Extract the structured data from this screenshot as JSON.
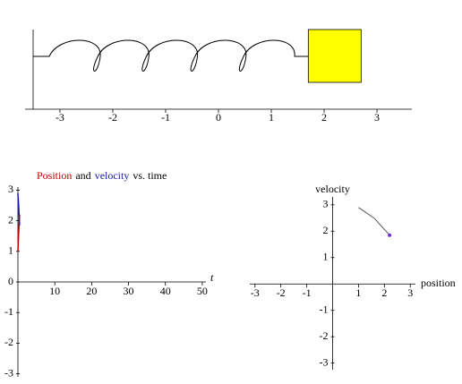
{
  "chart_data": [
    {
      "type": "spring",
      "position": 2.2,
      "color": "#ffff00",
      "xlim": [
        -3.66,
        3.66
      ],
      "xticks": [
        -3,
        -2,
        -1,
        0,
        1,
        2,
        3
      ]
    },
    {
      "type": "line",
      "title_parts": [
        {
          "text": "Position",
          "color": "#c00000"
        },
        {
          "text": "and",
          "color": "#000000"
        },
        {
          "text": "velocity",
          "color": "#1a1aa0"
        },
        {
          "text": "vs. time",
          "color": "#000000"
        }
      ],
      "x_label": "t",
      "x": [
        0,
        0.2,
        0.45
      ],
      "series": [
        {
          "name": "Position",
          "color": "#c00000",
          "values": [
            1.0,
            1.6,
            2.2
          ]
        },
        {
          "name": "velocity",
          "color": "#1a1aa0",
          "values": [
            2.9,
            2.5,
            1.85
          ]
        }
      ],
      "xlim": [
        0,
        51
      ],
      "ylim": [
        -3.1,
        3.1
      ],
      "xticks": [
        10,
        20,
        30,
        40,
        50
      ],
      "yticks": [
        -3,
        -2,
        -1,
        0,
        1,
        2,
        3
      ]
    },
    {
      "type": "phase",
      "x_label": "position",
      "y_label": "velocity",
      "color": "#555555",
      "point_color": "#7a2be2",
      "x": [
        1.0,
        1.6,
        2.2
      ],
      "values": [
        2.9,
        2.5,
        1.85
      ],
      "xlim": [
        -3.2,
        3.2
      ],
      "ylim": [
        -3.25,
        3.3
      ],
      "xticks": [
        -3,
        -2,
        -1,
        1,
        2,
        3
      ],
      "yticks": [
        -3,
        -2,
        -1,
        1,
        2,
        3
      ]
    }
  ]
}
